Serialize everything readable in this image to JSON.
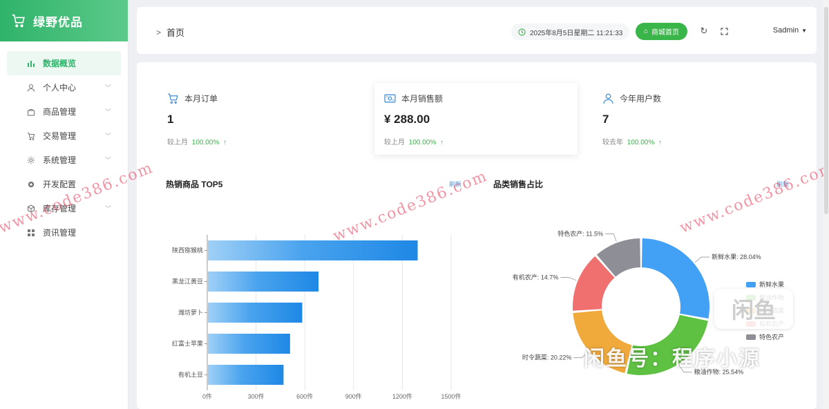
{
  "brand": {
    "title": "绿野优品"
  },
  "sidebar": {
    "items": [
      {
        "label": "数据概览",
        "icon": "bar-chart-icon"
      },
      {
        "label": "个人中心",
        "icon": "user-icon"
      },
      {
        "label": "商品管理",
        "icon": "shop-icon"
      },
      {
        "label": "交易管理",
        "icon": "cart-icon"
      },
      {
        "label": "系统管理",
        "icon": "gear-icon"
      },
      {
        "label": "开发配置",
        "icon": "cog-icon"
      },
      {
        "label": "库存管理",
        "icon": "box-icon"
      },
      {
        "label": "资讯管理",
        "icon": "grid-icon"
      }
    ]
  },
  "header": {
    "breadcrumb": "首页",
    "datetime": "2025年8月5日星期二 11:21:33",
    "shop_button": "商城首页",
    "user": "Sadmin"
  },
  "stats": [
    {
      "label": "本月订单",
      "value": "1",
      "trend_label": "较上月",
      "trend_value": "100.00%",
      "trend_arrow": "↑"
    },
    {
      "label": "本月销售额",
      "value": "¥ 288.00",
      "trend_label": "较上月",
      "trend_value": "100.00%",
      "trend_arrow": "↑"
    },
    {
      "label": "今年用户数",
      "value": "7",
      "trend_label": "较去年",
      "trend_value": "100.00%",
      "trend_arrow": "↑"
    }
  ],
  "bar_section": {
    "title": "热销商品 TOP5",
    "refresh": "刷新"
  },
  "pie_section": {
    "title": "品类销售占比",
    "refresh": "刷新"
  },
  "watermarks": {
    "text": "www.code386.com",
    "xianyu": "闲鱼号：程序小源",
    "xianyu_logo": "闲鱼"
  },
  "colors": {
    "brand": "#2fb36a",
    "accent": "#3ab54a",
    "bar": "#2b8ee8"
  },
  "chart_data": [
    {
      "type": "bar",
      "orientation": "horizontal",
      "title": "热销商品 TOP5",
      "categories": [
        "陕西猕猴桃",
        "黑龙江黄豆",
        "潍坊萝卜",
        "红富士苹果",
        "有机土豆"
      ],
      "values": [
        1290,
        680,
        580,
        505,
        465
      ],
      "xlim": [
        0,
        1500
      ],
      "ticks": [
        "0件",
        "300件",
        "600件",
        "900件",
        "1200件",
        "1500件"
      ],
      "tick_values": [
        0,
        300,
        600,
        900,
        1200,
        1500
      ],
      "grid": true
    },
    {
      "type": "pie",
      "variant": "donut",
      "title": "品类销售占比",
      "slices": [
        {
          "name": "新鲜水果",
          "value": 28.04,
          "label": "新鲜水果: 28.04%",
          "color": "#42a0f5"
        },
        {
          "name": "粮油作物",
          "value": 25.54,
          "label": "粮油作物: 25.54%",
          "color": "#5ec142"
        },
        {
          "name": "时令蔬菜",
          "value": 20.22,
          "label": "时令蔬菜: 20.22%",
          "color": "#f0a93b"
        },
        {
          "name": "有机农产",
          "value": 14.7,
          "label": "有机农产: 14.7%",
          "color": "#f07070"
        },
        {
          "name": "特色农产",
          "value": 11.5,
          "label": "特色农产: 11.5%",
          "color": "#8e8f96"
        }
      ],
      "legend": [
        "新鲜水果",
        "粮油作物",
        "时令蔬菜",
        "有机农产",
        "特色农产"
      ],
      "legend_position": "right"
    }
  ]
}
